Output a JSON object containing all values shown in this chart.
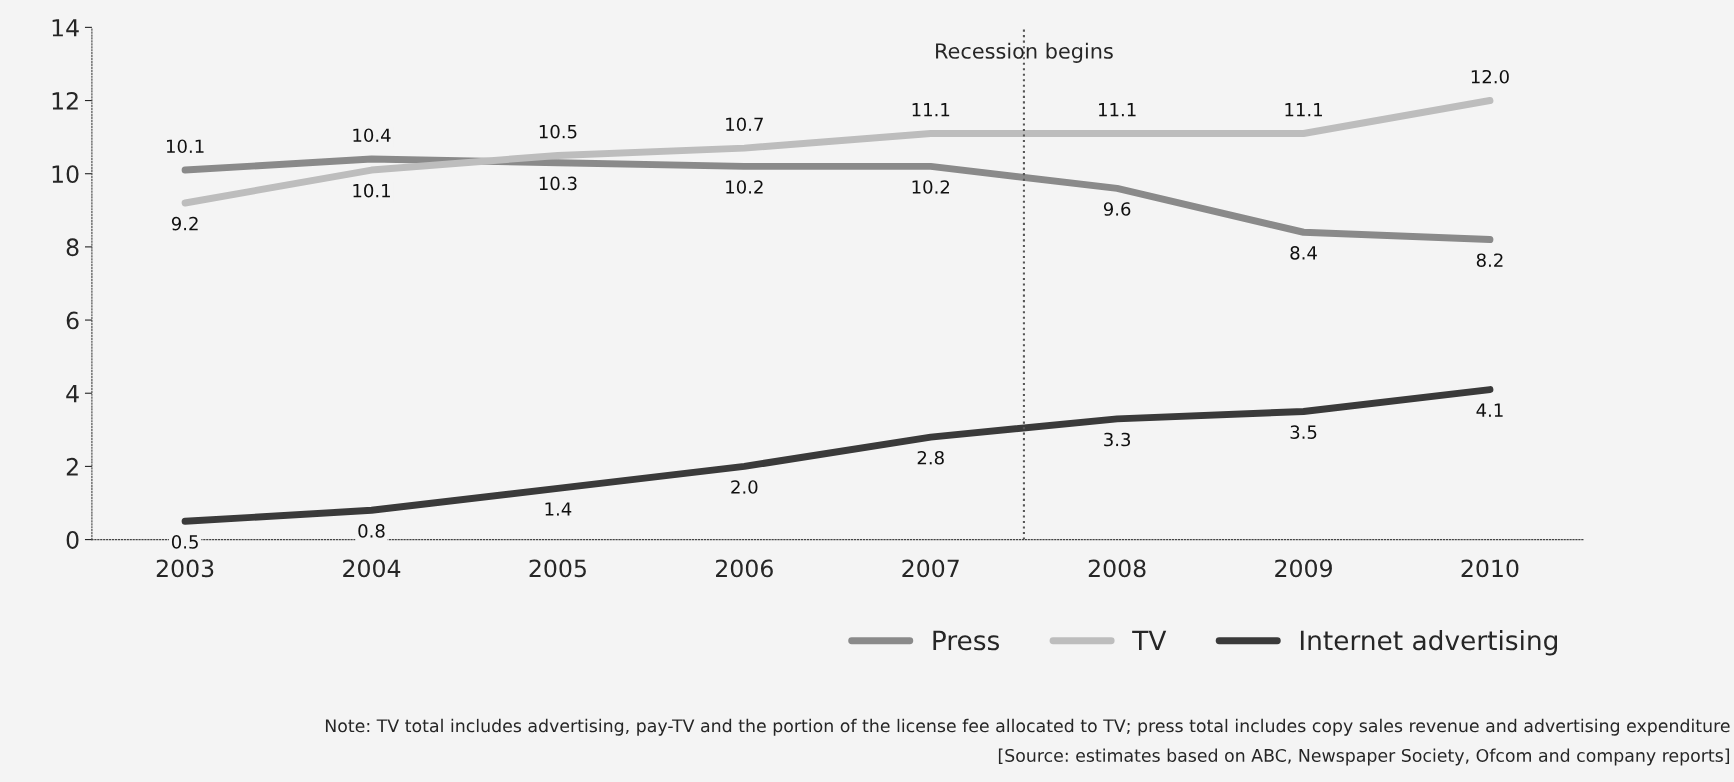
{
  "chart_data": {
    "type": "line",
    "x": [
      2003,
      2004,
      2005,
      2006,
      2007,
      2008,
      2009,
      2010
    ],
    "series": [
      {
        "name": "Press",
        "color": "#8a8a8a",
        "values": [
          10.1,
          10.4,
          10.3,
          10.2,
          10.2,
          9.6,
          8.4,
          8.2
        ],
        "value_labels": [
          "10.1",
          "10.4",
          "10.3",
          "10.2",
          "10.2",
          "9.6",
          "8.4",
          "8.2"
        ]
      },
      {
        "name": "TV",
        "color": "#bdbdbd",
        "values": [
          9.2,
          10.1,
          10.5,
          10.7,
          11.1,
          11.1,
          11.1,
          12.0
        ],
        "value_labels": [
          "9.2",
          "10.1",
          "10.5",
          "10.7",
          "11.1",
          "11.1",
          "11.1",
          "12.0"
        ]
      },
      {
        "name": "Internet advertising",
        "color": "#3a3a3a",
        "values": [
          0.5,
          0.8,
          1.4,
          2.0,
          2.8,
          3.3,
          3.5,
          4.1
        ],
        "value_labels": [
          "0.5",
          "0.8",
          "1.4",
          "2.0",
          "2.8",
          "3.3",
          "3.5",
          "4.1"
        ]
      }
    ],
    "xlim": [
      2002.5,
      2010.5
    ],
    "xticks": [
      2003,
      2004,
      2005,
      2006,
      2007,
      2008,
      2009,
      2010
    ],
    "ylim": [
      0,
      14
    ],
    "yticks": [
      0,
      2,
      4,
      6,
      8,
      10,
      12,
      14
    ],
    "ref_lines": [
      {
        "axis": "x",
        "value": 2007.5,
        "label": "Recession begins",
        "color": "#555555",
        "line_style": "dotted"
      }
    ],
    "legend": "bottom right",
    "grid": false,
    "annotations": [
      "Note: TV total includes advertising, pay-TV and the portion of the license fee allocated to TV; press total includes copy sales revenue and advertising expenditure",
      "[Source: estimates based on ABC, Newspaper Society, Ofcom and company reports]"
    ]
  }
}
